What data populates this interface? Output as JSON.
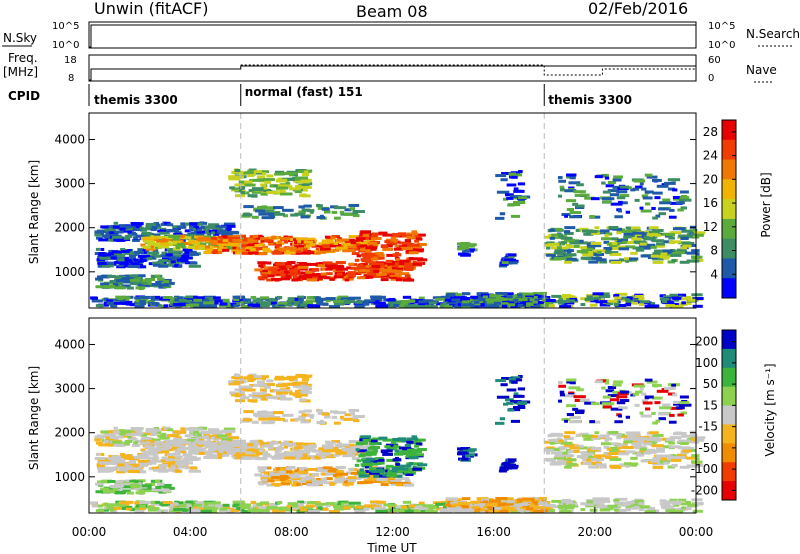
{
  "header": {
    "station": "Unwin (fitACF)",
    "beam": "Beam 08",
    "date": "02/Feb/2016"
  },
  "strip_labels": {
    "nsky": "N.Sky",
    "freq": "Freq.",
    "freq_unit": "[MHz]",
    "cpid": "CPID",
    "nsearch": "N.Search",
    "nave": "Nave",
    "nsky_ticks": [
      "10^5",
      "10^0"
    ],
    "freq_ticks": [
      "18",
      "8"
    ],
    "nsearch_ticks": [
      "10^5",
      "10^0"
    ],
    "nave_ticks": [
      "60",
      "0"
    ]
  },
  "cpid_segments": [
    {
      "label": "themis 3300",
      "start_hour": 0
    },
    {
      "label": "normal (fast) 151",
      "start_hour": 6
    },
    {
      "label": "themis 3300",
      "start_hour": 18
    }
  ],
  "colors": {
    "power_scale": [
      "#0000ff",
      "#1e5aa8",
      "#3c8c64",
      "#5aaa3c",
      "#c8d21e",
      "#f0b400",
      "#f07800",
      "#f03c00",
      "#e60000"
    ],
    "velocity_scale": [
      "#e60000",
      "#f03c00",
      "#f08c00",
      "#f5b41e",
      "#c8c8c8",
      "#8cd250",
      "#3cb43c",
      "#1e8c78",
      "#0000c8"
    ]
  },
  "chart_data": [
    {
      "type": "heatmap",
      "name": "power",
      "xlabel": "",
      "ylabel": "Slant Range [km]",
      "x_ticks": [
        "00:00",
        "04:00",
        "08:00",
        "12:00",
        "16:00",
        "20:00",
        "00:00"
      ],
      "xlim_hours": [
        0,
        24
      ],
      "ylim": [
        180,
        4600
      ],
      "y_ticks": [
        1000,
        2000,
        3000,
        4000
      ],
      "colorbar_label": "Power [dB]",
      "colorbar_ticks": [
        "4",
        "8",
        "12",
        "16",
        "20",
        "24",
        "28"
      ],
      "colorbar_range": [
        0,
        30
      ]
    },
    {
      "type": "heatmap",
      "name": "velocity",
      "xlabel": "Time UT",
      "ylabel": "Slant Range [km]",
      "x_ticks": [
        "00:00",
        "04:00",
        "08:00",
        "12:00",
        "16:00",
        "20:00",
        "00:00"
      ],
      "xlim_hours": [
        0,
        24
      ],
      "ylim": [
        180,
        4600
      ],
      "y_ticks": [
        1000,
        2000,
        3000,
        4000
      ],
      "colorbar_label": "Velocity [m s⁻¹]",
      "colorbar_ticks": [
        "200",
        "100",
        "50",
        "15",
        "-15",
        "-50",
        "-100",
        "-200"
      ]
    }
  ]
}
